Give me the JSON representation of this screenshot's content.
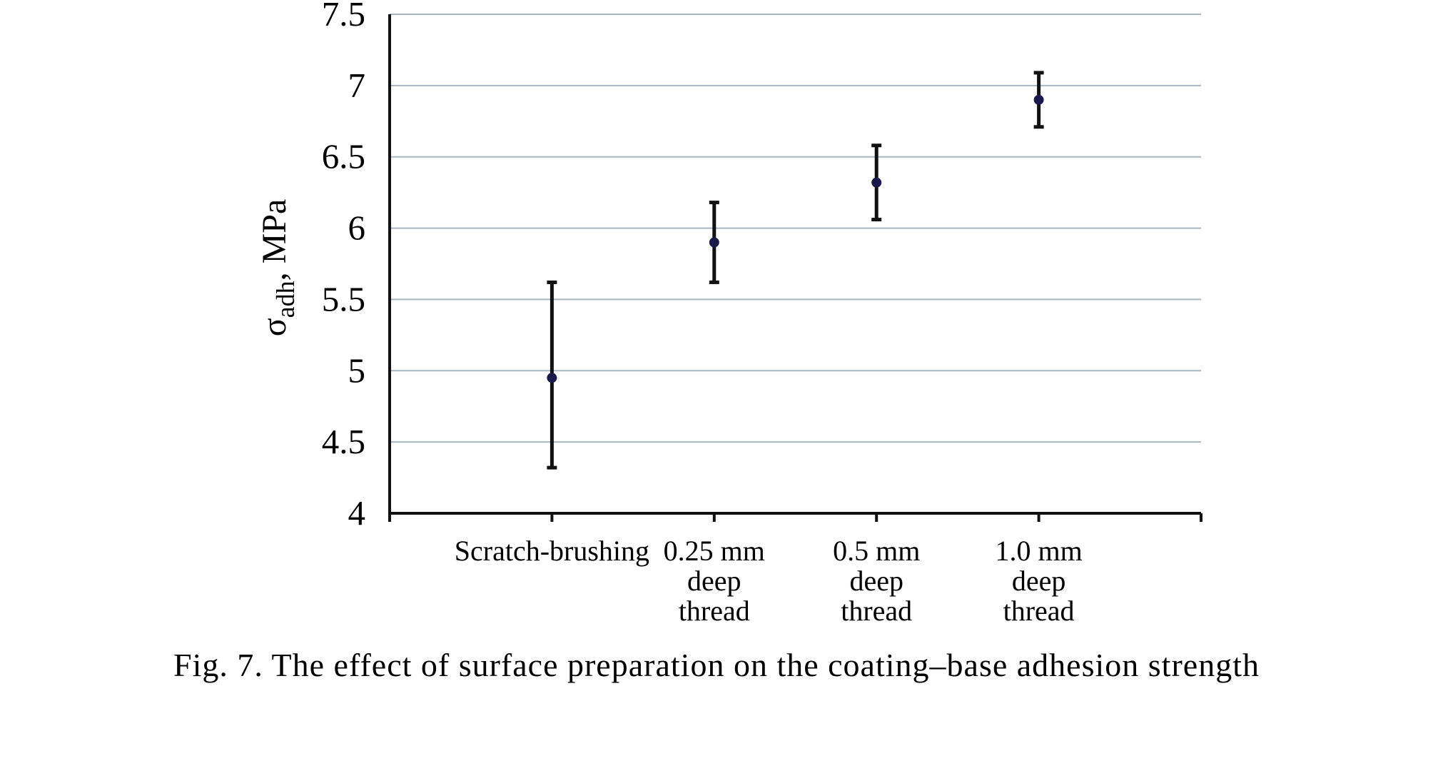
{
  "chart_data": {
    "type": "scatter",
    "categories": [
      "Scratch-brushing",
      "0.25 mm deep thread",
      "0.5 mm deep thread",
      "1.0 mm deep thread"
    ],
    "category_labels": [
      [
        "Scratch-brushing"
      ],
      [
        "0.25 mm",
        "deep",
        "thread"
      ],
      [
        "0.5 mm",
        "deep",
        "thread"
      ],
      [
        "1.0 mm",
        "deep",
        "thread"
      ]
    ],
    "values": [
      4.95,
      5.9,
      6.32,
      6.9
    ],
    "error_low": [
      4.32,
      5.62,
      6.06,
      6.71
    ],
    "error_high": [
      5.62,
      6.18,
      6.58,
      7.09
    ],
    "ylabel": {
      "symbol": "σ",
      "subscript": "adh",
      "unit": ", MPa"
    },
    "ylim": [
      4,
      7.5
    ],
    "yticks": [
      "4",
      "4.5",
      "5",
      "5.5",
      "6",
      "6.5",
      "7",
      "7.5"
    ],
    "grid": true,
    "colors": {
      "point": "#1a1a4a",
      "errorbar": "#111111",
      "grid": "#a9b5bf",
      "axis": "#111111"
    }
  },
  "caption": "Fig. 7. The effect of surface preparation on the coating–base adhesion strength"
}
